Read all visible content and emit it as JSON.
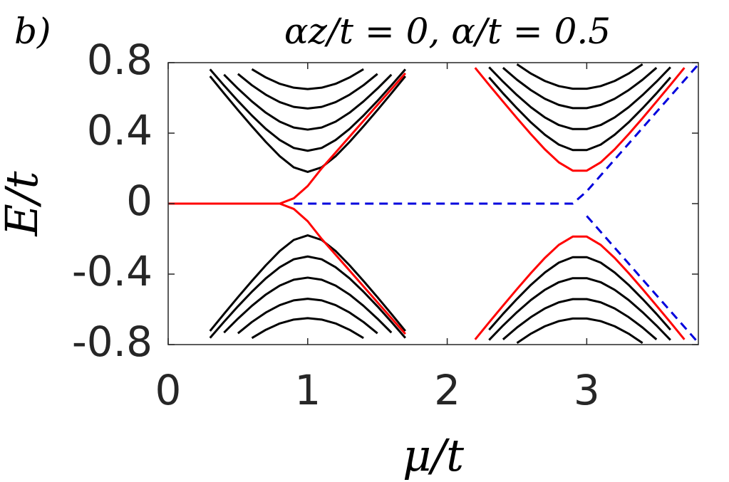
{
  "chart_data": {
    "type": "line",
    "panel_label": "b)",
    "title": "αz/t = 0,  α/t = 0.5",
    "xlabel": "μ/t",
    "ylabel": "E/t",
    "xlim": [
      0,
      3.8
    ],
    "ylim": [
      -0.8,
      0.8
    ],
    "xticks": [
      0,
      1,
      2,
      3
    ],
    "yticks": [
      -0.8,
      -0.4,
      0,
      0.4,
      0.8
    ],
    "grid": false,
    "x": [
      0,
      0.1,
      0.2,
      0.3,
      0.4,
      0.5,
      0.6,
      0.7,
      0.8,
      0.9,
      1,
      1.1,
      1.2,
      1.3,
      1.4,
      1.5,
      1.6,
      1.7,
      1.8,
      1.9,
      2,
      2.1,
      2.2,
      2.3,
      2.4,
      2.5,
      2.6,
      2.7,
      2.8,
      2.9,
      3,
      3.1,
      3.2,
      3.3,
      3.4,
      3.5,
      3.6,
      3.7,
      3.8
    ],
    "series": [
      {
        "color": "#000000",
        "dashed": false,
        "values": [
          null,
          null,
          null,
          0.723,
          0.626,
          0.531,
          0.439,
          0.35,
          0.269,
          0.206,
          0.18,
          0.206,
          0.269,
          0.35,
          0.439,
          0.531,
          0.626,
          0.723,
          null,
          null,
          null,
          null,
          null,
          0.716,
          0.626,
          0.541,
          0.461,
          0.391,
          0.335,
          0.304,
          0.304,
          0.335,
          0.391,
          0.461,
          0.541,
          0.626,
          0.716,
          null,
          null
        ]
      },
      {
        "color": "#000000",
        "dashed": false,
        "values": [
          null,
          null,
          null,
          0.762,
          0.671,
          0.583,
          0.5,
          0.424,
          0.361,
          0.316,
          0.3,
          0.316,
          0.361,
          0.424,
          0.5,
          0.583,
          0.671,
          0.762,
          null,
          null,
          null,
          null,
          null,
          0.774,
          0.692,
          0.616,
          0.547,
          0.489,
          0.446,
          0.423,
          0.423,
          0.446,
          0.489,
          0.547,
          0.616,
          0.692,
          0.774,
          null,
          null
        ]
      },
      {
        "color": "#000000",
        "dashed": false,
        "values": [
          null,
          null,
          null,
          null,
          0.732,
          0.653,
          0.58,
          0.516,
          0.465,
          0.432,
          0.42,
          0.432,
          0.465,
          0.516,
          0.58,
          0.653,
          0.732,
          null,
          null,
          null,
          null,
          null,
          null,
          null,
          0.771,
          0.703,
          0.644,
          0.595,
          0.56,
          0.542,
          0.542,
          0.56,
          0.595,
          0.644,
          0.703,
          0.771,
          null,
          null,
          null
        ]
      },
      {
        "color": "#000000",
        "dashed": false,
        "values": [
          null,
          null,
          null,
          null,
          null,
          0.736,
          0.672,
          0.618,
          0.576,
          0.549,
          0.54,
          0.549,
          0.576,
          0.618,
          0.672,
          0.736,
          null,
          null,
          null,
          null,
          null,
          null,
          null,
          null,
          null,
          0.791,
          0.738,
          0.696,
          0.667,
          0.652,
          0.652,
          0.667,
          0.696,
          0.738,
          0.791,
          null,
          null,
          null,
          null
        ]
      },
      {
        "color": "#000000",
        "dashed": false,
        "values": [
          null,
          null,
          null,
          null,
          null,
          null,
          0.763,
          0.716,
          0.68,
          0.658,
          0.65,
          0.658,
          0.68,
          0.716,
          0.763,
          null,
          null,
          null,
          null,
          null,
          null,
          null,
          null,
          null,
          null,
          null,
          null,
          null,
          null,
          null,
          null,
          null,
          null,
          null,
          null,
          null,
          null,
          null,
          null
        ]
      },
      {
        "color": "#000000",
        "dashed": false,
        "values": [
          null,
          null,
          null,
          -0.723,
          -0.626,
          -0.531,
          -0.439,
          -0.35,
          -0.269,
          -0.206,
          -0.18,
          -0.206,
          -0.269,
          -0.35,
          -0.439,
          -0.531,
          -0.626,
          -0.723,
          null,
          null,
          null,
          null,
          null,
          -0.716,
          -0.626,
          -0.541,
          -0.461,
          -0.391,
          -0.335,
          -0.304,
          -0.304,
          -0.335,
          -0.391,
          -0.461,
          -0.541,
          -0.626,
          -0.716,
          null,
          null
        ]
      },
      {
        "color": "#000000",
        "dashed": false,
        "values": [
          null,
          null,
          null,
          -0.762,
          -0.671,
          -0.583,
          -0.5,
          -0.424,
          -0.361,
          -0.316,
          -0.3,
          -0.316,
          -0.361,
          -0.424,
          -0.5,
          -0.583,
          -0.671,
          -0.762,
          null,
          null,
          null,
          null,
          null,
          -0.774,
          -0.692,
          -0.616,
          -0.547,
          -0.489,
          -0.446,
          -0.423,
          -0.423,
          -0.446,
          -0.489,
          -0.547,
          -0.616,
          -0.692,
          -0.774,
          null,
          null
        ]
      },
      {
        "color": "#000000",
        "dashed": false,
        "values": [
          null,
          null,
          null,
          null,
          -0.732,
          -0.653,
          -0.58,
          -0.516,
          -0.465,
          -0.432,
          -0.42,
          -0.432,
          -0.465,
          -0.516,
          -0.58,
          -0.653,
          -0.732,
          null,
          null,
          null,
          null,
          null,
          null,
          null,
          -0.771,
          -0.703,
          -0.644,
          -0.595,
          -0.56,
          -0.542,
          -0.542,
          -0.56,
          -0.595,
          -0.644,
          -0.703,
          -0.771,
          null,
          null,
          null
        ]
      },
      {
        "color": "#000000",
        "dashed": false,
        "values": [
          null,
          null,
          null,
          null,
          null,
          -0.736,
          -0.672,
          -0.618,
          -0.576,
          -0.549,
          -0.54,
          -0.549,
          -0.576,
          -0.618,
          -0.672,
          -0.736,
          null,
          null,
          null,
          null,
          null,
          null,
          null,
          null,
          null,
          -0.791,
          -0.738,
          -0.696,
          -0.667,
          -0.652,
          -0.652,
          -0.667,
          -0.696,
          -0.738,
          -0.791,
          null,
          null,
          null,
          null
        ]
      },
      {
        "color": "#000000",
        "dashed": false,
        "values": [
          null,
          null,
          null,
          null,
          null,
          null,
          -0.763,
          -0.716,
          -0.68,
          -0.658,
          -0.65,
          -0.658,
          -0.68,
          -0.716,
          -0.763,
          null,
          null,
          null,
          null,
          null,
          null,
          null,
          null,
          null,
          null,
          null,
          null,
          null,
          null,
          null,
          null,
          null,
          null,
          null,
          null,
          null,
          null,
          null,
          null
        ]
      },
      {
        "color": "#ff0000",
        "dashed": false,
        "values": [
          0,
          0,
          0,
          0,
          0,
          0,
          0,
          0,
          0,
          0.03,
          0.1,
          0.2,
          0.29,
          0.38,
          0.47,
          0.56,
          0.65,
          0.74,
          null,
          null,
          null,
          null,
          0.771,
          0.674,
          0.579,
          0.485,
          0.394,
          0.308,
          0.234,
          0.187,
          0.187,
          0.234,
          0.308,
          0.394,
          0.485,
          0.579,
          0.674,
          0.771,
          null
        ]
      },
      {
        "color": "#ff0000",
        "dashed": false,
        "values": [
          0,
          0,
          0,
          0,
          0,
          0,
          0,
          0,
          0,
          -0.03,
          -0.1,
          -0.2,
          -0.29,
          -0.38,
          -0.47,
          -0.56,
          -0.65,
          -0.74,
          null,
          null,
          null,
          null,
          -0.771,
          -0.674,
          -0.579,
          -0.485,
          -0.394,
          -0.308,
          -0.234,
          -0.187,
          -0.187,
          -0.234,
          -0.308,
          -0.394,
          -0.485,
          -0.579,
          -0.674,
          -0.771,
          null
        ]
      },
      {
        "color": "#0000dd",
        "dashed": true,
        "values": [
          null,
          null,
          null,
          null,
          null,
          null,
          null,
          null,
          null,
          0,
          0,
          0,
          0,
          0,
          0,
          0,
          0,
          0,
          0,
          0,
          0,
          0,
          0,
          0,
          0,
          0,
          0,
          0,
          0,
          0,
          0.07,
          0.16,
          0.25,
          0.34,
          0.43,
          0.52,
          0.61,
          0.7,
          0.79
        ]
      },
      {
        "color": "#0000dd",
        "dashed": true,
        "values": [
          null,
          null,
          null,
          null,
          null,
          null,
          null,
          null,
          null,
          null,
          null,
          null,
          null,
          null,
          null,
          null,
          null,
          null,
          null,
          null,
          null,
          null,
          null,
          null,
          null,
          null,
          null,
          null,
          null,
          null,
          -0.07,
          -0.16,
          -0.25,
          -0.34,
          -0.43,
          -0.52,
          -0.61,
          -0.7,
          -0.79
        ]
      }
    ]
  }
}
